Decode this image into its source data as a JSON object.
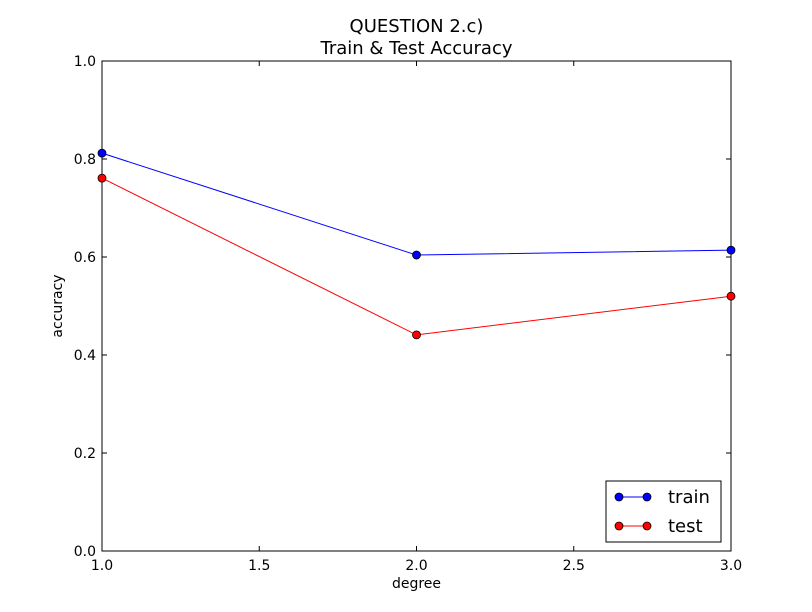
{
  "chart_data": {
    "type": "line",
    "title": "QUESTION 2.c)",
    "subtitle": "Train & Test Accuracy",
    "xlabel": "degree",
    "ylabel": "accuracy",
    "xlim": [
      1.0,
      3.0
    ],
    "ylim": [
      0.0,
      1.0
    ],
    "x_ticks": [
      "1.0",
      "1.5",
      "2.0",
      "2.5",
      "3.0"
    ],
    "y_ticks": [
      "0.0",
      "0.2",
      "0.4",
      "0.6",
      "0.8",
      "1.0"
    ],
    "grid": false,
    "legend_position": "bottom-right",
    "x": [
      1.0,
      2.0,
      3.0
    ],
    "series": [
      {
        "name": "train",
        "color": "#0000ff",
        "marker": "circle",
        "values": [
          0.812,
          0.604,
          0.614
        ]
      },
      {
        "name": "test",
        "color": "#ff0000",
        "marker": "circle",
        "values": [
          0.761,
          0.441,
          0.52
        ]
      }
    ]
  }
}
